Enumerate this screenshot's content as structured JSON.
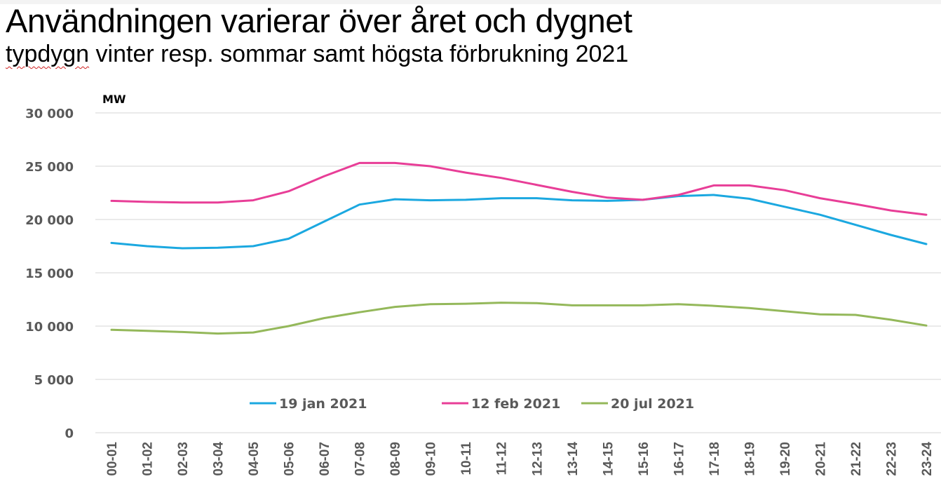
{
  "title": "Användningen varierar över året och dygnet",
  "subtitle_underlined": "typdygn",
  "subtitle_rest": " vinter resp. sommar samt högsta förbrukning 2021",
  "chart_data": {
    "type": "line",
    "title": "Användningen varierar över året och dygnet",
    "subtitle": "typdygn vinter resp. sommar samt högsta förbrukning 2021",
    "ylabel": "MW",
    "xlabel": "",
    "ylim": [
      0,
      30000
    ],
    "yticks": [
      0,
      5000,
      10000,
      15000,
      20000,
      25000,
      30000
    ],
    "ytick_labels": [
      "0",
      "5 000",
      "10 000",
      "15 000",
      "20 000",
      "25 000",
      "30 000"
    ],
    "grid": true,
    "legend_position": "bottom-center",
    "categories": [
      "00-01",
      "01-02",
      "02-03",
      "03-04",
      "04-05",
      "05-06",
      "06-07",
      "07-08",
      "08-09",
      "09-10",
      "10-11",
      "11-12",
      "12-13",
      "13-14",
      "14-15",
      "15-16",
      "16-17",
      "17-18",
      "18-19",
      "19-20",
      "20-21",
      "21-22",
      "22-23",
      "23-24"
    ],
    "series": [
      {
        "name": "19 jan 2021",
        "color": "#1ba8e0",
        "values": [
          17800,
          17500,
          17300,
          17350,
          17500,
          18200,
          19800,
          21400,
          21900,
          21800,
          21850,
          22000,
          22000,
          21800,
          21750,
          21850,
          22200,
          22300,
          21950,
          21200,
          20450,
          19500,
          18550,
          17700
        ]
      },
      {
        "name": "12 feb 2021",
        "color": "#e83e97",
        "values": [
          21750,
          21650,
          21600,
          21600,
          21800,
          22650,
          24050,
          25300,
          25300,
          25000,
          24400,
          23900,
          23250,
          22600,
          22050,
          21850,
          22300,
          23200,
          23200,
          22750,
          22000,
          21450,
          20850,
          20450
        ]
      },
      {
        "name": "20 jul 2021",
        "color": "#94b85a",
        "values": [
          9650,
          9550,
          9450,
          9300,
          9400,
          10000,
          10750,
          11300,
          11800,
          12050,
          12100,
          12200,
          12150,
          11950,
          11950,
          11950,
          12050,
          11900,
          11700,
          11400,
          11100,
          11050,
          10600,
          10050
        ]
      }
    ]
  },
  "colors": {
    "grid": "#e3e3e3",
    "tick_text": "#595959"
  }
}
